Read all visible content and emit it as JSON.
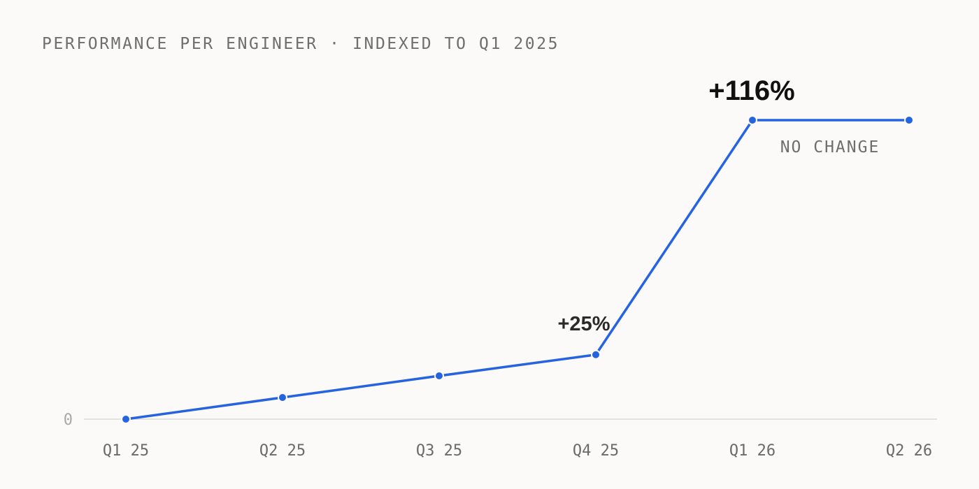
{
  "chart_data": {
    "type": "line",
    "title": "PERFORMANCE PER ENGINEER · INDEXED TO Q1 2025",
    "xlabel": "",
    "ylabel": "",
    "categories": [
      "Q1 25",
      "Q2 25",
      "Q3 25",
      "Q4 25",
      "Q1 26",
      "Q2 26"
    ],
    "series": [
      {
        "values": [
          0,
          8.4,
          16.8,
          25,
          116,
          116
        ]
      }
    ],
    "y_ticks": [
      "0"
    ],
    "ylim": [
      0,
      116
    ],
    "grid": false,
    "legend": "none",
    "annotations": {
      "q4_25": "+25%",
      "q1_26": "+116%",
      "flat": "NO CHANGE"
    },
    "colors": {
      "line": "#2563e0",
      "axis": "#d9d9d9",
      "background": "#fbfaf8"
    }
  }
}
